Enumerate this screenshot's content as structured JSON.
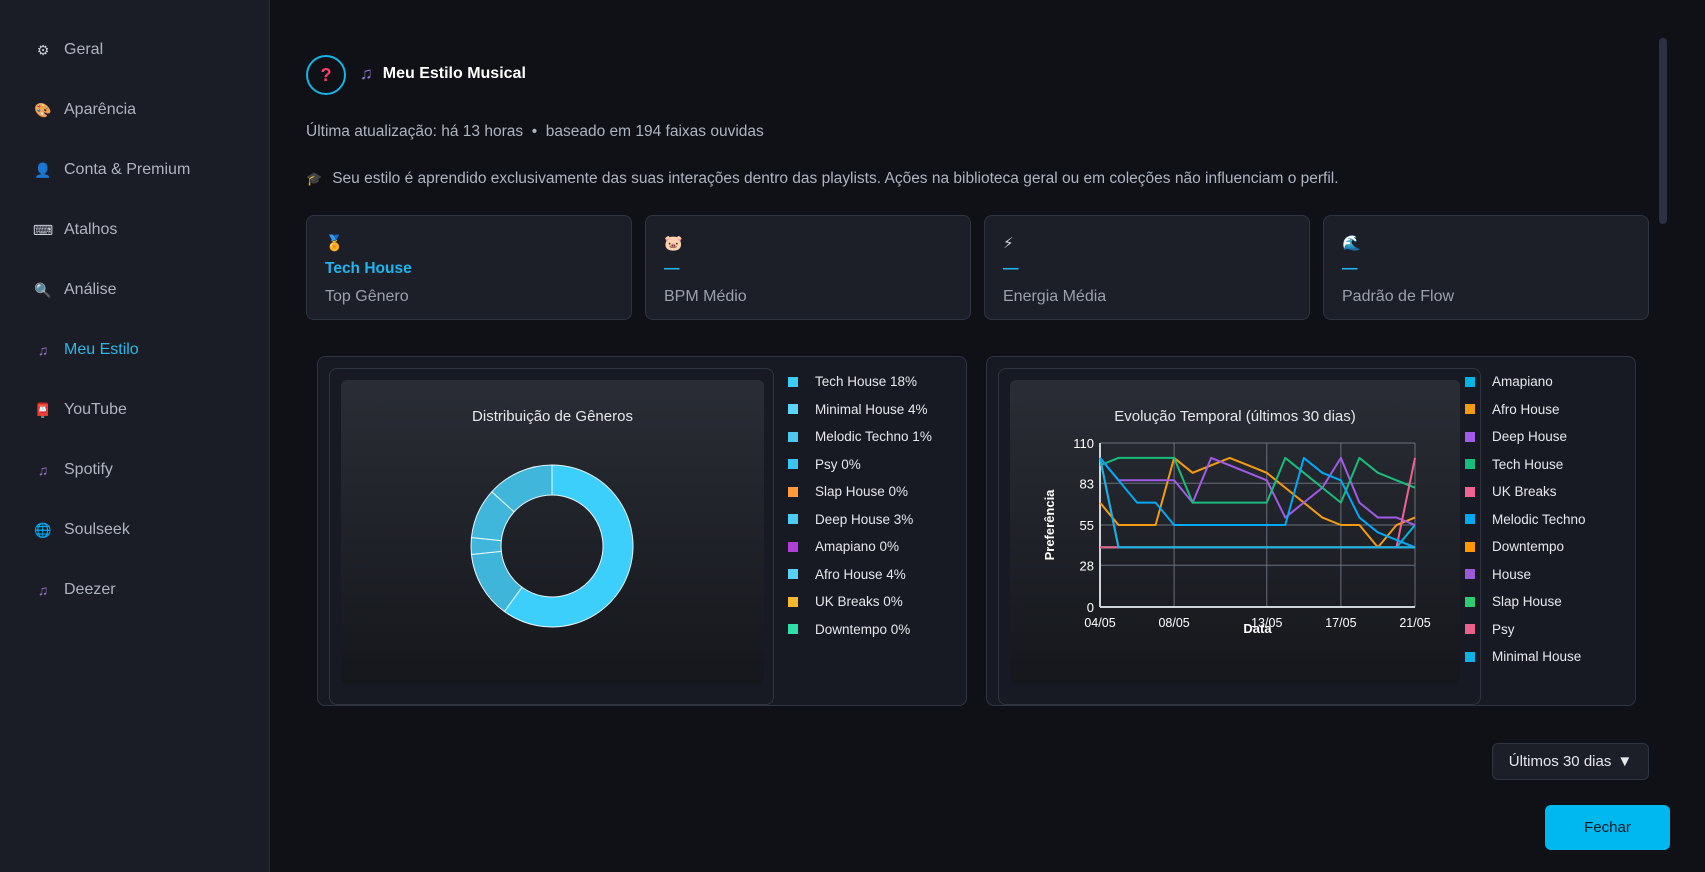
{
  "sidebar": {
    "items": [
      {
        "label": "Geral",
        "icon": "gear-icon",
        "glyph": "⚙",
        "color": "#c9ced8"
      },
      {
        "label": "Aparência",
        "icon": "palette-icon",
        "glyph": "🎨",
        "color": "#f48fb1"
      },
      {
        "label": "Conta & Premium",
        "icon": "user-icon",
        "glyph": "👤",
        "color": "#7e57c2"
      },
      {
        "label": "Atalhos",
        "icon": "keyboard-icon",
        "glyph": "⌨",
        "color": "#c9ced8"
      },
      {
        "label": "Análise",
        "icon": "magnifier-icon",
        "glyph": "🔍",
        "color": "#4fc3f7"
      },
      {
        "label": "Meu Estilo",
        "icon": "music-note-icon",
        "glyph": "♫",
        "color": "#9575cd",
        "active": true
      },
      {
        "label": "YouTube",
        "icon": "mailbox-icon",
        "glyph": "📮",
        "color": "#e53935"
      },
      {
        "label": "Spotify",
        "icon": "music-note-icon",
        "glyph": "♫",
        "color": "#9575cd"
      },
      {
        "label": "Soulseek",
        "icon": "globe-icon",
        "glyph": "🌐",
        "color": "#4fc3f7"
      },
      {
        "label": "Deezer",
        "icon": "music-note-icon",
        "glyph": "♫",
        "color": "#9575cd"
      }
    ]
  },
  "header": {
    "help_glyph": "?",
    "title_icon": "♫",
    "title": "Meu Estilo Musical",
    "subtitle": "Última atualização: há 13 horas  •  baseado em 194 faixas ouvidas",
    "note_icon": "🎓",
    "note": "Seu estilo é aprendido exclusivamente das suas interações dentro das playlists. Ações na biblioteca geral ou em coleções não influenciam o perfil."
  },
  "cards": [
    {
      "icon": "medal-icon",
      "glyph": "🏅",
      "value": "Tech House",
      "label": "Top Gênero"
    },
    {
      "icon": "pig-icon",
      "glyph": "🐷",
      "value": "—",
      "label": "BPM Médio"
    },
    {
      "icon": "lightning-icon",
      "glyph": "⚡",
      "value": "—",
      "label": "Energia Média"
    },
    {
      "icon": "wave-icon",
      "glyph": "🌊",
      "value": "—",
      "label": "Padrão de Flow"
    }
  ],
  "chart_data": [
    {
      "type": "pie",
      "title": "Distribuição de Gêneros",
      "categories": [
        "Tech House",
        "Minimal House",
        "Melodic Techno",
        "Psy",
        "Slap House",
        "Deep House",
        "Amapiano",
        "Afro House",
        "UK Breaks",
        "Downtempo"
      ],
      "values": [
        18,
        4,
        1,
        0,
        0,
        3,
        0,
        4,
        0,
        0
      ],
      "legend_labels": [
        "Tech House  18%",
        "Minimal House  4%",
        "Melodic Techno  1%",
        "Psy  0%",
        "Slap House  0%",
        "Deep House  3%",
        "Amapiano  0%",
        "Afro House  4%",
        "UK Breaks  0%",
        "Downtempo  0%"
      ],
      "colors": [
        "#3ccdf7",
        "#5ed5f8",
        "#4cc8f0",
        "#3ac5f0",
        "#ff9a3c",
        "#4ecbf2",
        "#b03fd8",
        "#58cff5",
        "#f5b82e",
        "#2fe0a6"
      ],
      "slice_color": "#45d0fa",
      "legend_position": "right"
    },
    {
      "type": "line",
      "title": "Evolução Temporal (últimos 30 dias)",
      "xlabel": "Data",
      "ylabel": "Preferência",
      "x": [
        "04/05",
        "05/05",
        "06/05",
        "07/05",
        "08/05",
        "09/05",
        "10/05",
        "11/05",
        "12/05",
        "13/05",
        "14/05",
        "15/05",
        "16/05",
        "17/05",
        "18/05",
        "19/05",
        "20/05",
        "21/05"
      ],
      "xticks": [
        "04/05",
        "08/05",
        "13/05",
        "17/05",
        "21/05"
      ],
      "yticks": [
        "0",
        "28",
        "55",
        "83",
        "110"
      ],
      "ylim": [
        0,
        110
      ],
      "grid": true,
      "series": [
        {
          "name": "Amapiano",
          "color": "#00b4e6",
          "values": [
            40,
            40,
            40,
            40,
            40,
            40,
            40,
            40,
            40,
            40,
            40,
            40,
            40,
            40,
            40,
            40,
            40,
            55
          ]
        },
        {
          "name": "Afro House",
          "color": "#f39c12",
          "values": [
            70,
            55,
            55,
            55,
            100,
            90,
            95,
            100,
            95,
            90,
            80,
            70,
            60,
            55,
            55,
            40,
            55,
            60
          ]
        },
        {
          "name": "Deep House",
          "color": "#a05ce6",
          "values": [
            100,
            85,
            85,
            85,
            85,
            70,
            100,
            95,
            90,
            85,
            60,
            70,
            80,
            100,
            70,
            60,
            60,
            55
          ]
        },
        {
          "name": "Tech House",
          "color": "#1abc7c",
          "values": [
            95,
            100,
            100,
            100,
            100,
            70,
            70,
            70,
            70,
            70,
            100,
            90,
            80,
            70,
            100,
            90,
            85,
            80
          ]
        },
        {
          "name": "UK Breaks",
          "color": "#f06292",
          "values": [
            100,
            40,
            40,
            40,
            40,
            40,
            40,
            40,
            40,
            40,
            40,
            40,
            40,
            40,
            40,
            40,
            40,
            100
          ]
        },
        {
          "name": "Melodic Techno",
          "color": "#03a9f4",
          "values": [
            100,
            85,
            70,
            70,
            55,
            55,
            55,
            55,
            55,
            55,
            55,
            100,
            90,
            85,
            60,
            50,
            45,
            40
          ]
        },
        {
          "name": "Downtempo",
          "color": "#ff9800",
          "values": [
            40,
            40,
            40,
            40,
            40,
            40,
            40,
            40,
            40,
            40,
            40,
            40,
            40,
            40,
            40,
            40,
            40,
            40
          ]
        },
        {
          "name": "House",
          "color": "#9b59d6",
          "values": [
            40,
            40,
            40,
            40,
            40,
            40,
            40,
            40,
            40,
            40,
            40,
            40,
            40,
            40,
            40,
            40,
            40,
            40
          ]
        },
        {
          "name": "Slap House",
          "color": "#2ecc71",
          "values": [
            40,
            40,
            40,
            40,
            40,
            40,
            40,
            40,
            40,
            40,
            40,
            40,
            40,
            40,
            40,
            40,
            40,
            40
          ]
        },
        {
          "name": "Psy",
          "color": "#ec5f8a",
          "values": [
            40,
            40,
            40,
            40,
            40,
            40,
            40,
            40,
            40,
            40,
            40,
            40,
            40,
            40,
            40,
            40,
            40,
            40
          ]
        },
        {
          "name": "Minimal House",
          "color": "#0fb3e8",
          "values": [
            100,
            40,
            40,
            40,
            40,
            40,
            40,
            40,
            40,
            40,
            40,
            40,
            40,
            40,
            40,
            40,
            40,
            40
          ]
        }
      ],
      "legend_position": "right"
    }
  ],
  "footer": {
    "range_label": "Últimos 30 dias",
    "range_arrow": "▼",
    "close_label": "Fechar"
  }
}
